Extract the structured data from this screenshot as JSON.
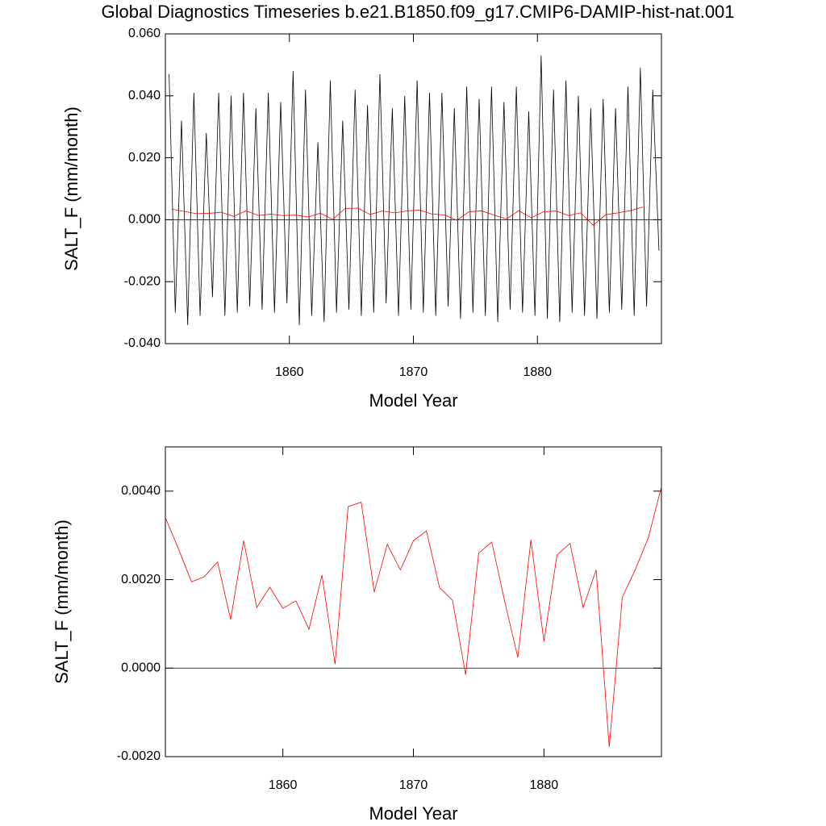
{
  "chart_data": [
    {
      "type": "line",
      "title": "Global Diagnostics Timeseries b.e21.B1850.f09_g17.CMIP6-DAMIP-hist-nat.001",
      "x_label": "Model Year",
      "y_label": "SALT_F (mm/month)",
      "xlim": [
        1850,
        1890
      ],
      "xticks": [
        1860,
        1870,
        1880
      ],
      "ylim": [
        -0.04,
        0.06
      ],
      "yticks": [
        {
          "value": -0.04,
          "label": "-0.040"
        },
        {
          "value": -0.02,
          "label": "-0.020"
        },
        {
          "value": 0,
          "label": "0.000"
        },
        {
          "value": 0.02,
          "label": "0.020"
        },
        {
          "value": 0.04,
          "label": "0.040"
        },
        {
          "value": 0.06,
          "label": "0.060"
        }
      ],
      "zero_line": 0,
      "series": [
        {
          "color": "#000000",
          "x": [
            1850.3,
            1850.8,
            1851.3,
            1851.8,
            1852.3,
            1852.8,
            1853.3,
            1853.8,
            1854.3,
            1854.8,
            1855.3,
            1855.8,
            1856.3,
            1856.8,
            1857.3,
            1857.8,
            1858.3,
            1858.8,
            1859.3,
            1859.8,
            1860.3,
            1860.8,
            1861.3,
            1861.8,
            1862.3,
            1862.8,
            1863.3,
            1863.8,
            1864.3,
            1864.8,
            1865.3,
            1865.8,
            1866.3,
            1866.8,
            1867.3,
            1867.8,
            1868.3,
            1868.8,
            1869.3,
            1869.8,
            1870.3,
            1870.8,
            1871.3,
            1871.8,
            1872.3,
            1872.8,
            1873.3,
            1873.8,
            1874.3,
            1874.8,
            1875.3,
            1875.8,
            1876.3,
            1876.8,
            1877.3,
            1877.8,
            1878.3,
            1878.8,
            1879.3,
            1879.8,
            1880.3,
            1880.8,
            1881.3,
            1881.8,
            1882.3,
            1882.8,
            1883.3,
            1883.8,
            1884.3,
            1884.8,
            1885.3,
            1885.8,
            1886.3,
            1886.8,
            1887.3,
            1887.8,
            1888.3,
            1888.8,
            1889.3,
            1889.8
          ],
          "values": [
            0.047,
            -0.03,
            0.032,
            -0.034,
            0.041,
            -0.031,
            0.028,
            -0.025,
            0.041,
            -0.031,
            0.04,
            -0.03,
            0.041,
            -0.028,
            0.036,
            -0.029,
            0.041,
            -0.03,
            0.038,
            -0.027,
            0.048,
            -0.034,
            0.042,
            -0.031,
            0.025,
            -0.033,
            0.045,
            -0.03,
            0.032,
            -0.029,
            0.042,
            -0.031,
            0.037,
            -0.03,
            0.047,
            -0.027,
            0.036,
            -0.031,
            0.04,
            -0.029,
            0.045,
            -0.03,
            0.041,
            -0.031,
            0.041,
            -0.028,
            0.036,
            -0.032,
            0.043,
            -0.03,
            0.039,
            -0.031,
            0.043,
            -0.033,
            0.038,
            -0.029,
            0.043,
            -0.03,
            0.035,
            -0.031,
            0.053,
            -0.032,
            0.042,
            -0.033,
            0.045,
            -0.03,
            0.04,
            -0.031,
            0.036,
            -0.032,
            0.039,
            -0.03,
            0.036,
            -0.029,
            0.043,
            -0.031,
            0.049,
            -0.028,
            0.042,
            -0.01
          ]
        },
        {
          "color": "#ff0000",
          "x": [
            1850.5,
            1851.5,
            1852.5,
            1853.5,
            1854.5,
            1855.5,
            1856.5,
            1857.5,
            1858.5,
            1859.5,
            1860.5,
            1861.5,
            1862.5,
            1863.5,
            1864.5,
            1865.5,
            1866.5,
            1867.5,
            1868.5,
            1869.5,
            1870.5,
            1871.5,
            1872.5,
            1873.5,
            1874.5,
            1875.5,
            1876.5,
            1877.5,
            1878.5,
            1879.5,
            1880.5,
            1881.5,
            1882.5,
            1883.5,
            1884.5,
            1885.5,
            1886.5,
            1887.5,
            1888.5
          ],
          "values": [
            0.0034,
            0.0027,
            0.00195,
            0.00207,
            0.0024,
            0.0011,
            0.00288,
            0.00137,
            0.00183,
            0.00135,
            0.00152,
            0.00088,
            0.0021,
            9e-05,
            0.00365,
            0.00375,
            0.00172,
            0.0028,
            0.00222,
            0.00288,
            0.0031,
            0.00182,
            0.00153,
            -0.00015,
            0.0026,
            0.00285,
            0.0015,
            0.00024,
            0.0029,
            0.0006,
            0.00256,
            0.00282,
            0.00137,
            0.00222,
            -0.00178,
            0.0016,
            0.00223,
            0.00295,
            0.0041
          ]
        }
      ]
    },
    {
      "type": "line",
      "x_label": "Model Year",
      "y_label": "SALT_F (mm/month)",
      "xlim": [
        1851,
        1889
      ],
      "xticks": [
        1860,
        1870,
        1880
      ],
      "ylim": [
        -0.002,
        0.005
      ],
      "yticks": [
        {
          "value": -0.002,
          "label": "-0.0020"
        },
        {
          "value": 0,
          "label": "0.0000"
        },
        {
          "value": 0.002,
          "label": "0.0020"
        },
        {
          "value": 0.004,
          "label": "0.0040"
        }
      ],
      "zero_line": 0,
      "series": [
        {
          "color": "#ff0000",
          "x": [
            1851,
            1852,
            1853,
            1854,
            1855,
            1856,
            1857,
            1858,
            1859,
            1860,
            1861,
            1862,
            1863,
            1864,
            1865,
            1866,
            1867,
            1868,
            1869,
            1870,
            1871,
            1872,
            1873,
            1874,
            1875,
            1876,
            1877,
            1878,
            1879,
            1880,
            1881,
            1882,
            1883,
            1884,
            1885,
            1886,
            1887,
            1888,
            1889
          ],
          "values": [
            0.0034,
            0.0027,
            0.00195,
            0.00207,
            0.0024,
            0.0011,
            0.00288,
            0.00137,
            0.00183,
            0.00135,
            0.00152,
            0.00088,
            0.0021,
            9e-05,
            0.00365,
            0.00375,
            0.00172,
            0.0028,
            0.00222,
            0.00288,
            0.0031,
            0.00182,
            0.00153,
            -0.00015,
            0.0026,
            0.00285,
            0.0015,
            0.00024,
            0.0029,
            0.0006,
            0.00256,
            0.00282,
            0.00137,
            0.00222,
            -0.00178,
            0.0016,
            0.00223,
            0.00295,
            0.0041
          ]
        }
      ]
    }
  ]
}
